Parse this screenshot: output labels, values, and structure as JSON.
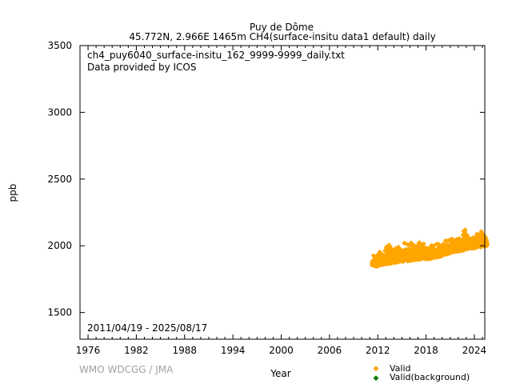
{
  "chart_data": {
    "type": "scatter",
    "title": "Puy de Dôme",
    "subtitle": "45.772N, 2.966E 1465m    CH4(surface-insitu data1 default) daily",
    "file_label": "ch4_puy6040_surface-insitu_162_9999-9999_daily.txt",
    "provider_label": "Data provided by ICOS",
    "date_range": "2011/04/19 - 2025/08/17",
    "xlabel": "Year",
    "ylabel": "ppb",
    "xlim": [
      1975,
      2025.3
    ],
    "ylim": [
      1300,
      3500
    ],
    "xticks": [
      1976,
      1982,
      1988,
      1994,
      2000,
      2006,
      2012,
      2018,
      2024
    ],
    "yticks": [
      1500,
      2000,
      2500,
      3000,
      3500
    ],
    "grid": false,
    "legend_position": "bottom-right",
    "legend": [
      {
        "name": "Valid",
        "color": "#ffa500"
      },
      {
        "name": "Valid(background)",
        "color": "#008000"
      }
    ],
    "series": [
      {
        "name": "Valid",
        "color": "#ffa500",
        "points": [
          [
            2011.3,
            1850,
            1930
          ],
          [
            2011.8,
            1845,
            1920
          ],
          [
            2012.3,
            1850,
            1960
          ],
          [
            2012.8,
            1860,
            1950
          ],
          [
            2013.3,
            1865,
            2030
          ],
          [
            2013.8,
            1870,
            1980
          ],
          [
            2014.3,
            1875,
            2000
          ],
          [
            2014.8,
            1880,
            1990
          ],
          [
            2015.3,
            1880,
            2040
          ],
          [
            2015.8,
            1885,
            2010
          ],
          [
            2016.3,
            1890,
            2030
          ],
          [
            2016.8,
            1895,
            2000
          ],
          [
            2017.3,
            1895,
            2040
          ],
          [
            2017.8,
            1900,
            2010
          ],
          [
            2018.3,
            1900,
            2020
          ],
          [
            2018.8,
            1905,
            2000
          ],
          [
            2019.3,
            1910,
            2020
          ],
          [
            2019.8,
            1920,
            2010
          ],
          [
            2020.3,
            1930,
            2040
          ],
          [
            2020.8,
            1940,
            2040
          ],
          [
            2021.3,
            1950,
            2060
          ],
          [
            2021.8,
            1955,
            2050
          ],
          [
            2022.3,
            1960,
            2070
          ],
          [
            2022.8,
            1965,
            2130
          ],
          [
            2023.3,
            1975,
            2080
          ],
          [
            2023.8,
            1980,
            2070
          ],
          [
            2024.3,
            1985,
            2090
          ],
          [
            2024.8,
            1990,
            2120
          ],
          [
            2025.3,
            1995,
            2080
          ],
          [
            2025.6,
            2000,
            2040
          ]
        ]
      }
    ],
    "watermark": "WMO WDCGG / JMA"
  }
}
